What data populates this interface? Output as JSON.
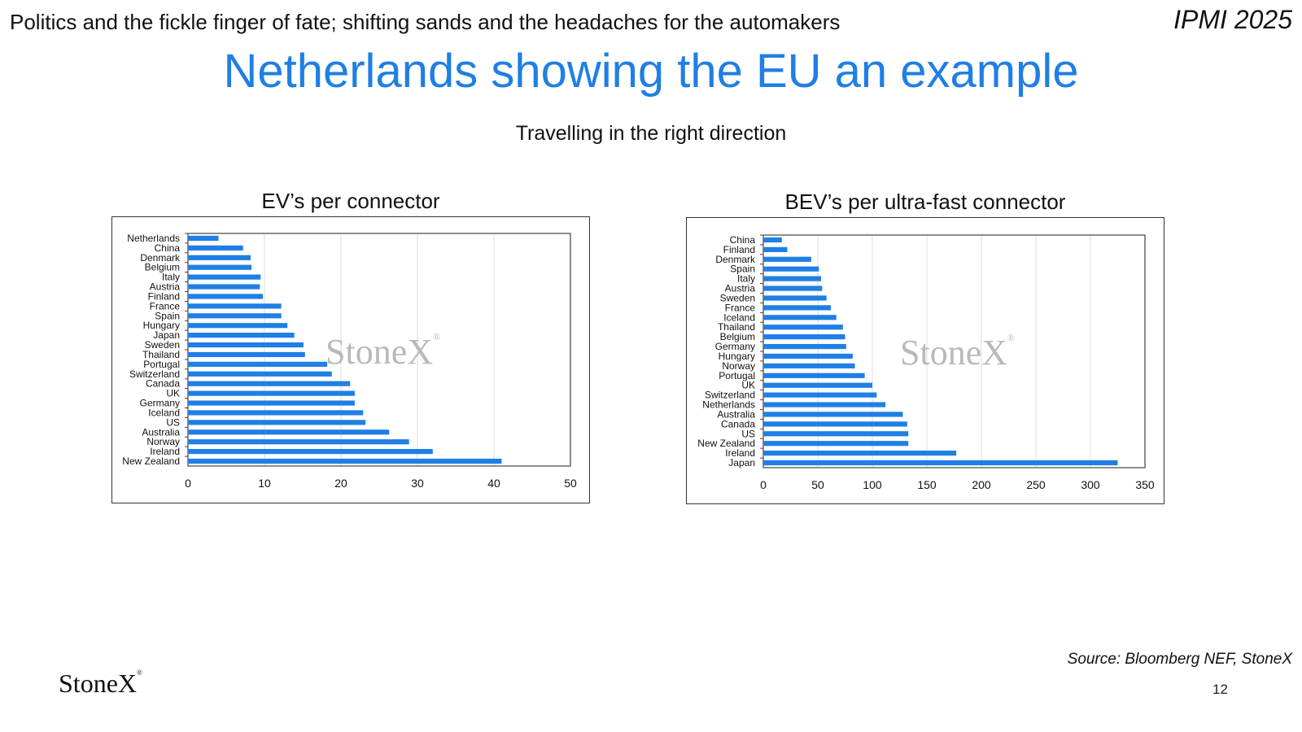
{
  "header": {
    "text": "Politics and the fickle finger of fate; shifting sands and the headaches for the automakers",
    "event": "IPMI 2025"
  },
  "page": {
    "title": "Netherlands showing the EU an example",
    "subtitle": "Travelling in the right direction",
    "source": "Source: Bloomberg NEF, StoneX",
    "number": "12"
  },
  "brand": {
    "name": "StoneX",
    "mark": "®"
  },
  "colors": {
    "bar": "#1f7fe4",
    "title": "#1f7fe4",
    "grid": "#dcdcdc",
    "watermark": "#b9b9b9"
  },
  "chart_data": [
    {
      "type": "bar",
      "orientation": "horizontal",
      "title": "EV’s per connector",
      "watermark": "StoneX",
      "categories": [
        "Netherlands",
        "China",
        "Denmark",
        "Belgium",
        "Italy",
        "Austria",
        "Finland",
        "France",
        "Spain",
        "Hungary",
        "Japan",
        "Sweden",
        "Thailand",
        "Portugal",
        "Switzerland",
        "Canada",
        "UK",
        "Germany",
        "Iceland",
        "US",
        "Australia",
        "Norway",
        "Ireland",
        "New Zealand"
      ],
      "values": [
        4,
        7.2,
        8.2,
        8.3,
        9.5,
        9.4,
        9.8,
        12.2,
        12.2,
        13,
        13.9,
        15.1,
        15.3,
        18.2,
        18.8,
        21.2,
        21.8,
        21.8,
        22.9,
        23.2,
        26.3,
        28.9,
        32,
        41
      ],
      "ticks": [
        "0",
        "10",
        "20",
        "30",
        "40",
        "50"
      ],
      "xlim": [
        0,
        50
      ],
      "grid": true
    },
    {
      "type": "bar",
      "orientation": "horizontal",
      "title": "BEV’s per ultra-fast connector",
      "watermark": "StoneX",
      "categories": [
        "China",
        "Finland",
        "Denmark",
        "Spain",
        "Italy",
        "Austria",
        "Sweden",
        "France",
        "Iceland",
        "Thailand",
        "Belgium",
        "Germany",
        "Hungary",
        "Norway",
        "Portugal",
        "UK",
        "Switzerland",
        "Netherlands",
        "Australia",
        "Canada",
        "US",
        "New Zealand",
        "Ireland",
        "Japan"
      ],
      "values": [
        17,
        22,
        44,
        51,
        53,
        54,
        58,
        62,
        67,
        73,
        75,
        76,
        82,
        84,
        93,
        100,
        104,
        112,
        128,
        132,
        133,
        133,
        177,
        325
      ],
      "ticks": [
        "0",
        "50",
        "100",
        "150",
        "200",
        "250",
        "300",
        "350"
      ],
      "xlim": [
        0,
        350
      ],
      "grid": true
    }
  ]
}
